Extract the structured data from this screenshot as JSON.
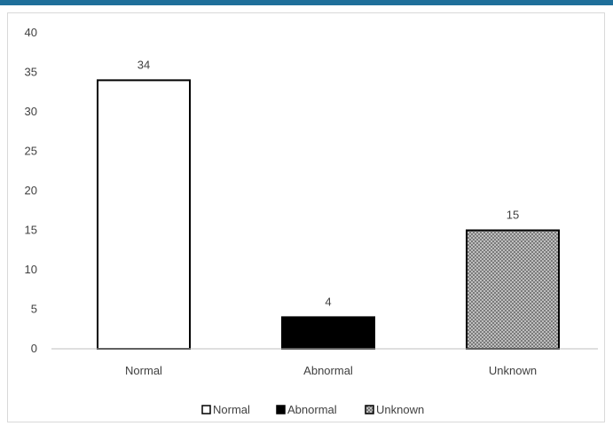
{
  "chart_data": {
    "type": "bar",
    "categories": [
      "Normal",
      "Abnormal",
      "Unknown"
    ],
    "values": [
      34,
      4,
      15
    ],
    "data_labels": [
      "34",
      "4",
      "15"
    ],
    "title": "",
    "xlabel": "",
    "ylabel": "",
    "ylim": [
      0,
      40
    ],
    "yticks": [
      0,
      5,
      10,
      15,
      20,
      25,
      30,
      35,
      40
    ],
    "grid": false,
    "legend": {
      "placement": "bottom",
      "entries": [
        "Normal",
        "Abnormal",
        "Unknown"
      ]
    },
    "bar_styles": [
      {
        "fill": "#ffffff",
        "pattern": "none"
      },
      {
        "fill": "#000000",
        "pattern": "none"
      },
      {
        "fill": "#9a9a9a",
        "pattern": "crosshatch"
      }
    ],
    "colors": {
      "accent": "#1f6f9a",
      "axis": "#bfbfbf",
      "text": "#404040",
      "bar_edge": "#000000"
    }
  }
}
